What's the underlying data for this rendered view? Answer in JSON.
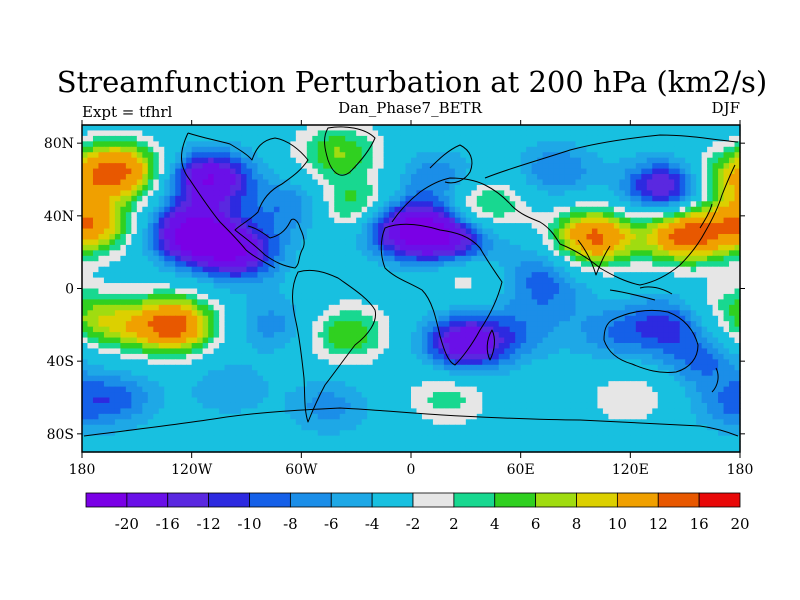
{
  "chart_data": {
    "type": "heatmap",
    "title": "Streamfunction Perturbation at 200 hPa (km2/s)",
    "subtitle_left": "Expt = tfhrl",
    "subtitle_center": "Dan_Phase7_BETR",
    "subtitle_right": "DJF",
    "x_range": [
      -180,
      180
    ],
    "y_range": [
      -90,
      90
    ],
    "x_ticks": [
      {
        "value": -180,
        "label": "180"
      },
      {
        "value": -120,
        "label": "120W"
      },
      {
        "value": -60,
        "label": "60W"
      },
      {
        "value": 0,
        "label": "0"
      },
      {
        "value": 60,
        "label": "60E"
      },
      {
        "value": 120,
        "label": "120E"
      },
      {
        "value": 180,
        "label": "180"
      }
    ],
    "y_ticks": [
      {
        "value": 80,
        "label": "80N"
      },
      {
        "value": 40,
        "label": "40N"
      },
      {
        "value": 0,
        "label": "0"
      },
      {
        "value": -40,
        "label": "40S"
      },
      {
        "value": -80,
        "label": "80S"
      }
    ],
    "levels": [
      -20,
      -16,
      -12,
      -10,
      -8,
      -6,
      -4,
      -2,
      2,
      4,
      6,
      8,
      10,
      12,
      16,
      20
    ],
    "level_labels": [
      "-20",
      "-16",
      "-12",
      "-10",
      "-8",
      "-6",
      "-4",
      "-2",
      "2",
      "4",
      "6",
      "8",
      "10",
      "12",
      "16",
      "20"
    ],
    "colors": [
      "#7a00e6",
      "#6a10e8",
      "#5a28e0",
      "#2d2ae0",
      "#1560e8",
      "#1b8ee8",
      "#1ea8e6",
      "#18c0e0",
      "#e6e6e6",
      "#18d890",
      "#30d020",
      "#a0dc10",
      "#dcd000",
      "#f0a000",
      "#e85800",
      "#e80808"
    ],
    "anomalies": [
      {
        "lon": -160,
        "lat": 65,
        "value": 17
      },
      {
        "lon": -175,
        "lat": 35,
        "value": 14
      },
      {
        "lon": -110,
        "lat": 60,
        "value": -16
      },
      {
        "lon": -120,
        "lat": 30,
        "value": -18
      },
      {
        "lon": -95,
        "lat": 20,
        "value": -14
      },
      {
        "lon": -40,
        "lat": 75,
        "value": 8
      },
      {
        "lon": -65,
        "lat": 45,
        "value": -6
      },
      {
        "lon": -30,
        "lat": 45,
        "value": 9
      },
      {
        "lon": -10,
        "lat": 35,
        "value": -10
      },
      {
        "lon": 10,
        "lat": 30,
        "value": -14
      },
      {
        "lon": 30,
        "lat": 25,
        "value": -8
      },
      {
        "lon": 40,
        "lat": 45,
        "value": 8
      },
      {
        "lon": 15,
        "lat": 60,
        "value": -6
      },
      {
        "lon": 80,
        "lat": 65,
        "value": -6
      },
      {
        "lon": 30,
        "lat": 10,
        "value": 5
      },
      {
        "lon": 70,
        "lat": 10,
        "value": -5
      },
      {
        "lon": 100,
        "lat": 28,
        "value": 17
      },
      {
        "lon": 150,
        "lat": 30,
        "value": 18
      },
      {
        "lon": 140,
        "lat": 55,
        "value": -14
      },
      {
        "lon": 170,
        "lat": 60,
        "value": 8
      },
      {
        "lon": -130,
        "lat": -20,
        "value": 18
      },
      {
        "lon": -165,
        "lat": -20,
        "value": 8
      },
      {
        "lon": -160,
        "lat": -60,
        "value": -6
      },
      {
        "lon": -100,
        "lat": -55,
        "value": -4
      },
      {
        "lon": -75,
        "lat": -20,
        "value": -5
      },
      {
        "lon": -35,
        "lat": -25,
        "value": 8
      },
      {
        "lon": -45,
        "lat": -65,
        "value": -5
      },
      {
        "lon": 30,
        "lat": -30,
        "value": -15
      },
      {
        "lon": 20,
        "lat": -60,
        "value": 5
      },
      {
        "lon": 60,
        "lat": -25,
        "value": -4
      },
      {
        "lon": 75,
        "lat": -5,
        "value": -4
      },
      {
        "lon": 110,
        "lat": -25,
        "value": -5
      },
      {
        "lon": 140,
        "lat": -20,
        "value": -8
      },
      {
        "lon": 160,
        "lat": -40,
        "value": -6
      },
      {
        "lon": 120,
        "lat": -60,
        "value": 4
      },
      {
        "lon": 175,
        "lat": -65,
        "value": -5
      },
      {
        "lon": 175,
        "lat": -10,
        "value": 4
      }
    ]
  }
}
